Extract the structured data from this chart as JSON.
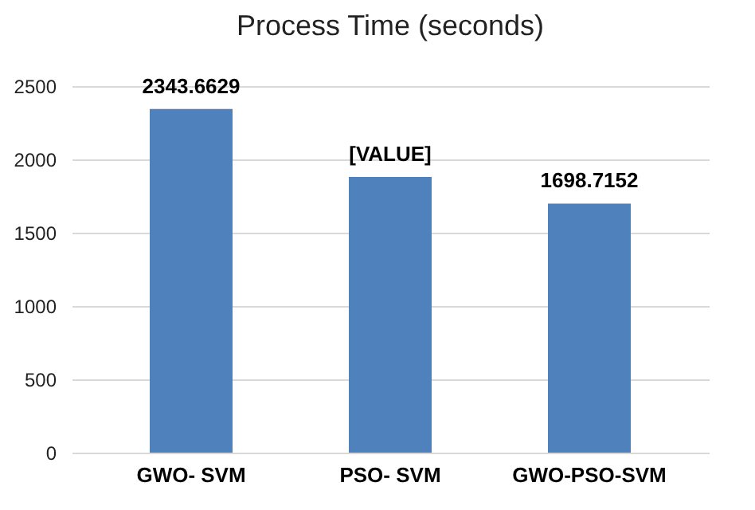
{
  "chart_data": {
    "type": "bar",
    "title": "Process Time (seconds)",
    "categories": [
      "GWO- SVM",
      "PSO- SVM",
      "GWO-PSO-SVM"
    ],
    "values": [
      2343.6629,
      1880,
      1698.7152
    ],
    "value_labels": [
      "2343.6629",
      "[VALUE]",
      "1698.7152"
    ],
    "color": "#4f81bd",
    "ylim": [
      0,
      2500
    ],
    "yticks": [
      0,
      500,
      1000,
      1500,
      2000,
      2500
    ],
    "grid": "y"
  }
}
